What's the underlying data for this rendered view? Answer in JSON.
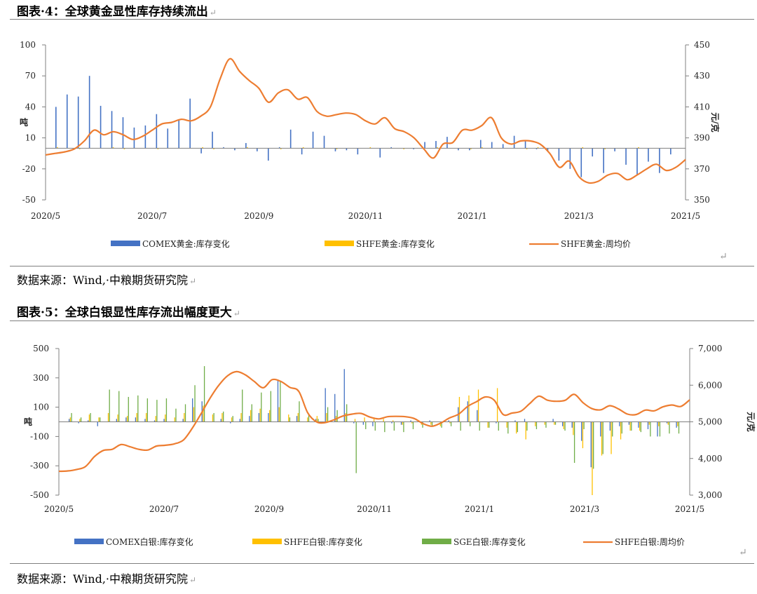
{
  "figures": [
    {
      "title": "图表·4：全球黄金显性库存持续流出",
      "source": "数据来源：Wind,·中粮期货研究院"
    },
    {
      "title": "图表·5：全球白银显性库存流出幅度更大",
      "source": "数据来源：Wind,·中粮期货研究院"
    }
  ],
  "return_mark": "↵",
  "chart_data": [
    {
      "type": "bar+line",
      "x_tick_labels": [
        "2020/5",
        "2020/7",
        "2020/9",
        "2020/11",
        "2021/1",
        "2021/3",
        "2021/5"
      ],
      "ylabel": "吨",
      "y2label": "元/克",
      "ylim": [
        -50,
        100
      ],
      "yticks": [
        -50,
        -20,
        10,
        40,
        70,
        100
      ],
      "y2lim": [
        350,
        450
      ],
      "y2ticks": [
        350,
        370,
        390,
        410,
        430,
        450
      ],
      "colors": {
        "comex": "#4472c4",
        "shfe": "#ffc000",
        "price": "#ed7d31"
      },
      "series": [
        {
          "name": "COMEX黄金:库存变化",
          "kind": "bar",
          "color_key": "comex",
          "values": [
            40,
            52,
            50,
            70,
            41,
            36,
            30,
            20,
            22,
            33,
            19,
            28,
            48,
            -5,
            16,
            1,
            -2,
            5,
            -3,
            -12,
            1,
            18,
            -6,
            16,
            12,
            -3,
            -2,
            -6,
            0,
            -9,
            1,
            0,
            -1,
            6,
            7,
            11,
            -2,
            -2,
            8,
            6,
            4,
            12,
            7,
            -1,
            -3,
            -12,
            -20,
            -28,
            -8,
            -24,
            -3,
            -16,
            -26,
            -13,
            -24,
            -6
          ],
          "shfe_values": [
            1,
            0,
            -1,
            0,
            0,
            1,
            -1,
            0,
            0,
            -1,
            0,
            0,
            0,
            1,
            -1,
            0,
            0,
            1,
            0,
            0,
            -1,
            0,
            1,
            0,
            0,
            -1,
            0,
            0,
            1,
            0,
            0,
            -1,
            0,
            0,
            1,
            0,
            0,
            -1,
            1,
            0,
            0,
            0,
            -1,
            1,
            0,
            0,
            0,
            1,
            0,
            -1,
            0,
            0,
            1,
            0,
            0,
            0
          ]
        },
        {
          "name": "SHFE黄金:库存变化",
          "kind": "bar",
          "color_key": "shfe"
        },
        {
          "name": "SHFE黄金:周均价",
          "kind": "line",
          "axis": "right",
          "color_key": "price",
          "values": [
            379,
            380,
            381,
            383,
            388,
            395,
            392,
            394,
            392,
            389,
            391,
            395,
            399,
            400,
            402,
            401,
            404,
            410,
            428,
            441,
            433,
            427,
            422,
            413,
            419,
            421,
            415,
            416,
            407,
            404,
            405,
            406,
            405,
            401,
            399,
            403,
            396,
            394,
            390,
            383,
            377,
            386,
            387,
            395,
            395,
            398,
            403,
            390,
            386,
            388,
            388,
            386,
            380,
            371,
            375,
            365,
            361,
            362,
            366,
            367,
            363,
            366,
            370,
            373,
            369,
            371,
            376
          ]
        }
      ]
    },
    {
      "type": "bar+line",
      "x_tick_labels": [
        "2020/5",
        "2020/7",
        "2020/9",
        "2020/11",
        "2021/1",
        "2021/3",
        "2021/5"
      ],
      "ylabel": "吨",
      "y2label": "元/克",
      "ylim": [
        -500,
        500
      ],
      "yticks": [
        -500,
        -300,
        -100,
        100,
        300,
        500
      ],
      "y2lim": [
        3000,
        7000
      ],
      "y2ticks": [
        "3,000",
        "4,000",
        "5,000",
        "6,000",
        "7,000"
      ],
      "colors": {
        "comex": "#4472c4",
        "shfe": "#ffc000",
        "sge": "#70ad47",
        "price": "#ed7d31"
      },
      "series": [
        {
          "name": "COMEX白银:库存变化",
          "kind": "bar",
          "color_key": "comex",
          "values": [
            20,
            -10,
            10,
            -30,
            0,
            20,
            30,
            30,
            20,
            10,
            20,
            0,
            20,
            160,
            140,
            0,
            20,
            -10,
            20,
            40,
            60,
            60,
            280,
            0,
            40,
            0,
            20,
            230,
            190,
            360,
            -10,
            -20,
            -30,
            0,
            -10,
            -20,
            10,
            0,
            10,
            0,
            10,
            100,
            140,
            80,
            0,
            -10,
            0,
            10,
            20,
            0,
            0,
            20,
            -30,
            -40,
            -130,
            -310,
            -100,
            -60,
            -30,
            -20,
            -40,
            -50,
            -100,
            -10,
            -40
          ]
        },
        {
          "name": "SHFE白银:库存变化",
          "kind": "bar",
          "color_key": "shfe",
          "shfe_values": [
            30,
            20,
            50,
            30,
            60,
            50,
            40,
            60,
            60,
            40,
            50,
            30,
            60,
            100,
            110,
            50,
            60,
            30,
            60,
            80,
            90,
            80,
            100,
            50,
            60,
            30,
            40,
            60,
            40,
            60,
            20,
            30,
            30,
            20,
            10,
            -20,
            -10,
            -20,
            -20,
            -30,
            -10,
            170,
            180,
            220,
            -40,
            230,
            -40,
            -80,
            -120,
            -30,
            -20,
            -20,
            -50,
            -90,
            -180,
            -500,
            -230,
            -220,
            -120,
            -60,
            -60,
            -20,
            -30,
            -20,
            -30
          ],
          "sge_values": [
            60,
            30,
            60,
            30,
            220,
            210,
            170,
            180,
            160,
            150,
            160,
            90,
            120,
            250,
            380,
            60,
            70,
            40,
            220,
            120,
            200,
            210,
            280,
            30,
            140,
            50,
            20,
            100,
            80,
            120,
            -350,
            -50,
            -60,
            -70,
            -60,
            -70,
            -50,
            -40,
            -30,
            -40,
            -30,
            -60,
            -30,
            -60,
            -40,
            -60,
            -80,
            -70,
            -60,
            -50,
            -40,
            -20,
            -60,
            -280,
            -50,
            -320,
            -220,
            -100,
            -80,
            -60,
            -70,
            -100,
            -100,
            -80,
            -80
          ]
        },
        {
          "name": "SGE白银:库存变化",
          "kind": "bar",
          "color_key": "sge"
        },
        {
          "name": "SHFE白银:周均价",
          "kind": "line",
          "axis": "right",
          "color_key": "price",
          "values": [
            3650,
            3660,
            3700,
            3780,
            4050,
            4220,
            4250,
            4380,
            4320,
            4250,
            4230,
            4340,
            4360,
            4400,
            4500,
            4820,
            5220,
            5640,
            6000,
            6260,
            6370,
            6280,
            6100,
            5930,
            6150,
            6100,
            5940,
            5830,
            5250,
            5000,
            4980,
            5060,
            5160,
            5210,
            5230,
            5130,
            5080,
            5140,
            5150,
            5140,
            5090,
            4950,
            4880,
            4970,
            5110,
            5210,
            5420,
            5550,
            5680,
            5590,
            5200,
            5240,
            5290,
            5500,
            5700,
            5590,
            5560,
            5590,
            5750,
            5520,
            5360,
            5330,
            5440,
            5350,
            5210,
            5200,
            5320,
            5300,
            5410,
            5460,
            5420,
            5600
          ]
        }
      ]
    }
  ]
}
